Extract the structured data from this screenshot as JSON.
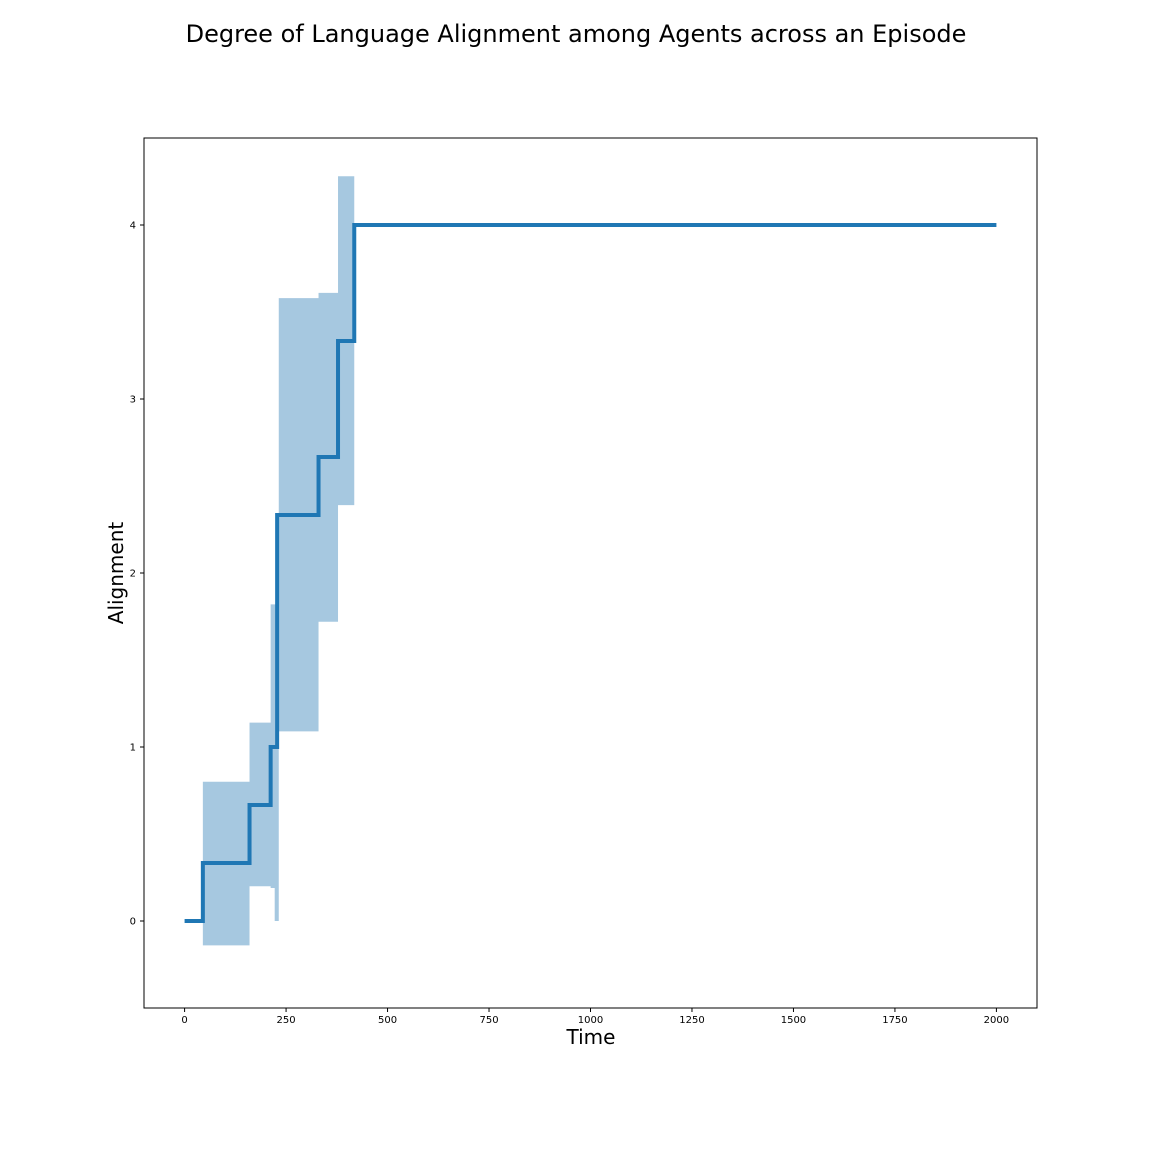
{
  "chart_data": {
    "type": "line",
    "title": "Degree of Language Alignment among Agents across an Episode",
    "xlabel": "Time",
    "ylabel": "Alignment",
    "xlim": [
      -100,
      2100
    ],
    "ylim": [
      -0.5,
      4.5
    ],
    "xticks": [
      0,
      250,
      500,
      750,
      1000,
      1250,
      1500,
      1750,
      2000
    ],
    "yticks": [
      0,
      1,
      2,
      3,
      4
    ],
    "grid": false,
    "legend": "none",
    "colors": {
      "line": "#1f77b4",
      "band": "#a6c8e0"
    },
    "series": [
      {
        "step": "post",
        "x": [
          0,
          45,
          160,
          212,
          228,
          330,
          378,
          418,
          2000
        ],
        "y": [
          0,
          0.333,
          0.667,
          1.0,
          2.333,
          2.667,
          3.333,
          4.0,
          4.0
        ]
      }
    ],
    "band": {
      "x": [
        45,
        160,
        212,
        222,
        232,
        330,
        378,
        418
      ],
      "lower": [
        -0.14,
        0.2,
        0.19,
        0.0,
        1.09,
        1.72,
        2.39,
        4.0
      ],
      "upper": [
        0.8,
        1.14,
        1.82,
        1.82,
        3.58,
        3.61,
        4.28,
        4.0
      ]
    }
  }
}
